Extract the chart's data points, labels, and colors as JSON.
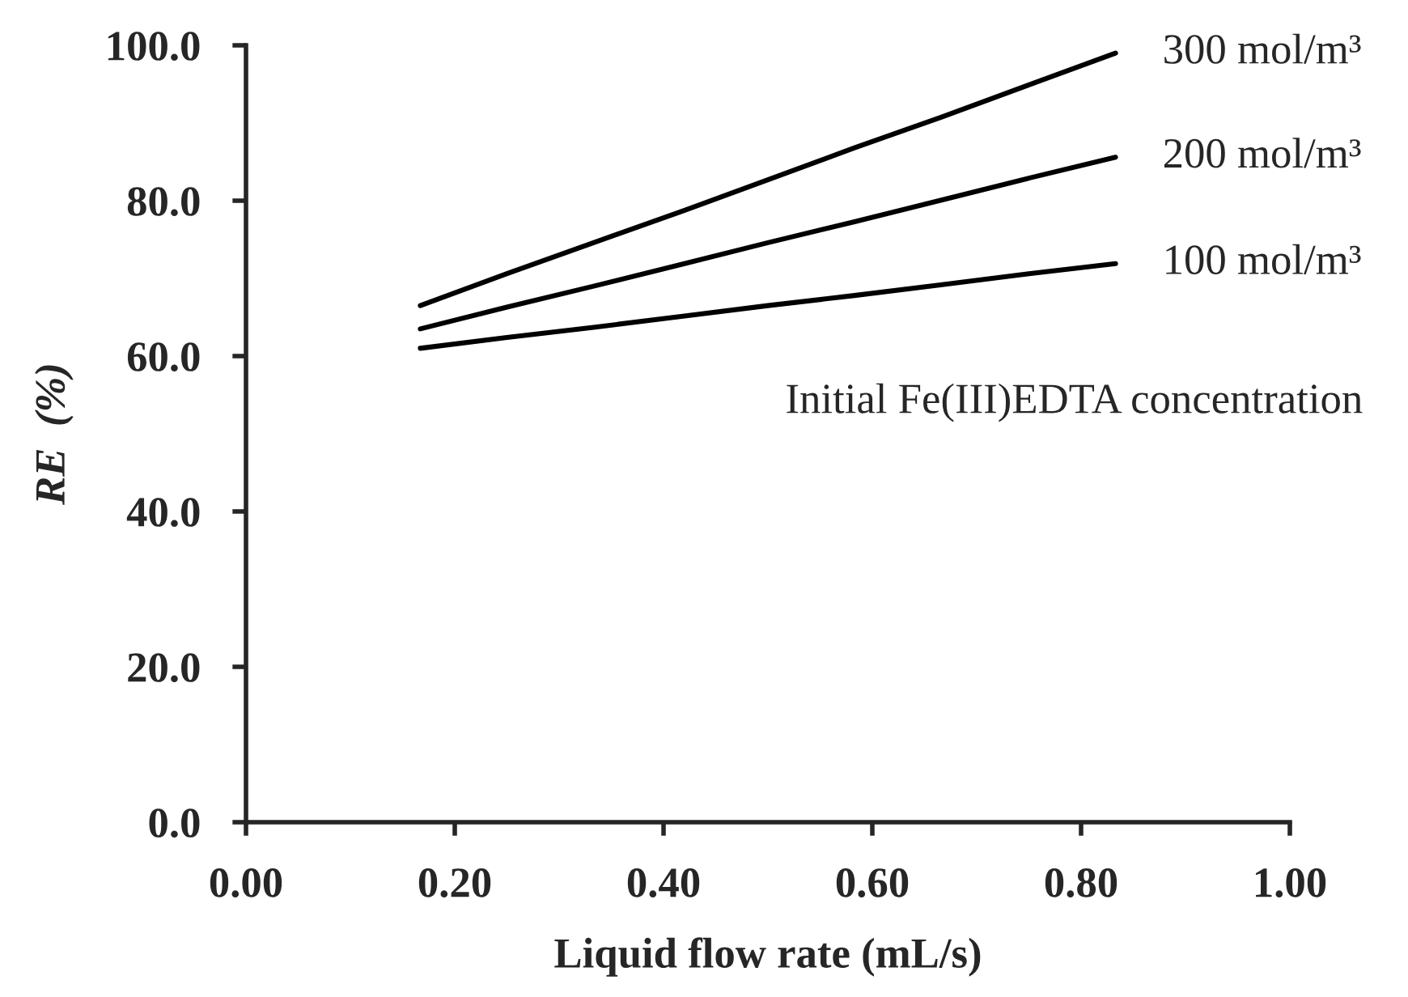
{
  "chart_data": {
    "type": "line",
    "xlabel": "Liquid flow rate (mL/s)",
    "ylabel": "RE  (%)",
    "x": [
      0.167,
      0.25,
      0.333,
      0.417,
      0.5,
      0.583,
      0.667,
      0.75,
      0.833
    ],
    "series": [
      {
        "name": "300 mol/m³",
        "color": "#000000",
        "values": [
          66.5,
          70.6,
          74.6,
          78.6,
          82.7,
          86.8,
          90.8,
          94.9,
          99.0
        ]
      },
      {
        "name": "200 mol/m³",
        "color": "#000000",
        "values": [
          63.5,
          66.3,
          69.0,
          71.8,
          74.6,
          77.3,
          80.1,
          82.9,
          85.6
        ]
      },
      {
        "name": "100 mol/m³",
        "color": "#000000",
        "values": [
          61.0,
          62.4,
          63.7,
          65.1,
          66.5,
          67.8,
          69.2,
          70.6,
          71.9
        ]
      }
    ],
    "annotations": [
      "Initial Fe(III)EDTA concentration"
    ],
    "xlim": [
      0,
      1
    ],
    "xticks": [
      {
        "value": 0,
        "label": "0.00"
      },
      {
        "value": 0.2,
        "label": "0.20"
      },
      {
        "value": 0.4,
        "label": "0.40"
      },
      {
        "value": 0.6,
        "label": "0.60"
      },
      {
        "value": 0.8,
        "label": "0.80"
      },
      {
        "value": 1,
        "label": "1.00"
      }
    ],
    "ylim": [
      0,
      100
    ],
    "yticks": [
      {
        "value": 0,
        "label": "0.0"
      },
      {
        "value": 20,
        "label": "20.0"
      },
      {
        "value": 40,
        "label": "40.0"
      },
      {
        "value": 60,
        "label": "60.0"
      },
      {
        "value": 80,
        "label": "80.0"
      },
      {
        "value": 100,
        "label": "100.0"
      }
    ],
    "grid": false,
    "legend": false,
    "marker": "none",
    "line_style": "solid"
  }
}
